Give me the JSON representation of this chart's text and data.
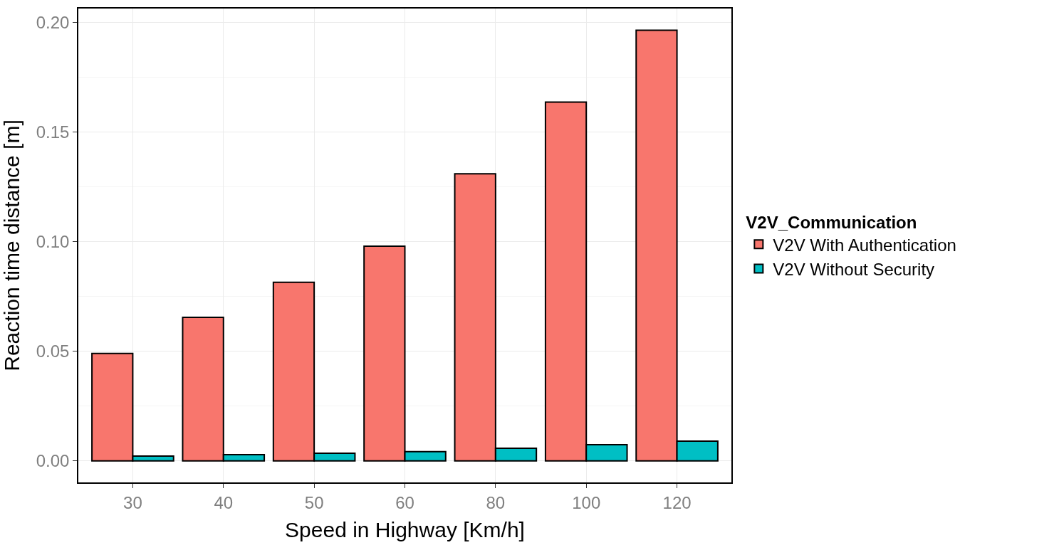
{
  "chart_data": {
    "type": "bar",
    "xlabel": "Speed in Highway [Km/h]",
    "ylabel": "Reaction time distance [m]",
    "legend_title": "V2V_Communication",
    "categories": [
      "30",
      "40",
      "50",
      "60",
      "80",
      "100",
      "120"
    ],
    "series": [
      {
        "name": "V2V With Authentication",
        "color": "#f8766d",
        "values": [
          0.049,
          0.0655,
          0.0815,
          0.098,
          0.131,
          0.1637,
          0.1965
        ]
      },
      {
        "name": "V2V Without Security",
        "color": "#00bfc4",
        "values": [
          0.0022,
          0.0029,
          0.0035,
          0.0042,
          0.0058,
          0.0074,
          0.009
        ]
      }
    ],
    "ylim": [
      -0.0098,
      0.2064
    ],
    "yticks": [
      {
        "value": 0,
        "label": "0.00"
      },
      {
        "value": 0.05,
        "label": "0.05"
      },
      {
        "value": 0.1,
        "label": "0.10"
      },
      {
        "value": 0.15,
        "label": "0.15"
      },
      {
        "value": 0.2,
        "label": "0.20"
      }
    ],
    "grid": true,
    "legend": "right"
  }
}
